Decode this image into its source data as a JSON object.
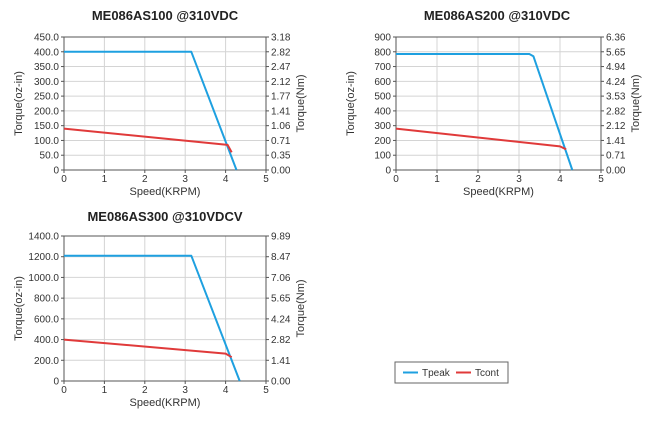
{
  "legend": {
    "entries": [
      {
        "label": "Tpeak",
        "color": "#1ea0e0"
      },
      {
        "label": "Tcont",
        "color": "#e03a3a"
      }
    ]
  },
  "chart_data": [
    {
      "type": "line",
      "title": "ME086AS100 @310VDC",
      "xlabel": "Speed(KRPM)",
      "ylabel": "Torque(oz-in)",
      "y2label": "Torque(Nm)",
      "xlim": [
        0,
        5
      ],
      "ylim": [
        0,
        450
      ],
      "x_ticks": [
        "0",
        "1",
        "2",
        "3",
        "4",
        "5"
      ],
      "y_ticks": [
        "0",
        "50.0",
        "100.0",
        "150.0",
        "200.0",
        "250.0",
        "300.0",
        "350.0",
        "400.0",
        "450.0"
      ],
      "y2_ticks": [
        "0.00",
        "0.35",
        "0.71",
        "1.06",
        "1.41",
        "1.77",
        "2.12",
        "2.47",
        "2.82",
        "3.18"
      ],
      "grid": true,
      "series": [
        {
          "name": "Tpeak",
          "color": "#1ea0e0",
          "x": [
            0,
            3.15,
            4.27
          ],
          "y": [
            400,
            400,
            0
          ]
        },
        {
          "name": "Tcont",
          "color": "#e03a3a",
          "x": [
            0,
            4.05,
            4.15
          ],
          "y": [
            140,
            85,
            60
          ]
        }
      ]
    },
    {
      "type": "line",
      "title": "ME086AS200 @310VDC",
      "xlabel": "Speed(KRPM)",
      "ylabel": "Torque(oz-in)",
      "y2label": "Torque(Nm)",
      "xlim": [
        0,
        5
      ],
      "ylim": [
        0,
        900
      ],
      "x_ticks": [
        "0",
        "1",
        "2",
        "3",
        "4",
        "5"
      ],
      "y_ticks": [
        "0",
        "100",
        "200",
        "300",
        "400",
        "500",
        "600",
        "700",
        "800",
        "900"
      ],
      "y2_ticks": [
        "0.00",
        "0.71",
        "1.41",
        "2.12",
        "2.82",
        "3.53",
        "4.24",
        "4.94",
        "5.65",
        "6.36"
      ],
      "grid": true,
      "series": [
        {
          "name": "Tpeak",
          "color": "#1ea0e0",
          "x": [
            0,
            3.25,
            3.35,
            4.3
          ],
          "y": [
            785,
            785,
            770,
            0
          ]
        },
        {
          "name": "Tcont",
          "color": "#e03a3a",
          "x": [
            0,
            4.0,
            4.15
          ],
          "y": [
            280,
            160,
            140
          ]
        }
      ]
    },
    {
      "type": "line",
      "title": "ME086AS300 @310VDCV",
      "xlabel": "Speed(KRPM)",
      "ylabel": "Torque(oz-in)",
      "y2label": "Torque(Nm)",
      "xlim": [
        0,
        5
      ],
      "ylim": [
        0,
        1400
      ],
      "x_ticks": [
        "0",
        "1",
        "2",
        "3",
        "4",
        "5"
      ],
      "y_ticks": [
        "0",
        "200.0",
        "400.0",
        "600.0",
        "800.0",
        "1000.0",
        "1200.0",
        "1400.0"
      ],
      "y2_ticks": [
        "0.00",
        "1.41",
        "2.82",
        "4.24",
        "5.65",
        "7.06",
        "8.47",
        "9.89"
      ],
      "grid": true,
      "series": [
        {
          "name": "Tpeak",
          "color": "#1ea0e0",
          "x": [
            0,
            3.15,
            4.35
          ],
          "y": [
            1210,
            1210,
            0
          ]
        },
        {
          "name": "Tcont",
          "color": "#e03a3a",
          "x": [
            0,
            4.0,
            4.15
          ],
          "y": [
            400,
            265,
            230
          ]
        }
      ]
    }
  ]
}
